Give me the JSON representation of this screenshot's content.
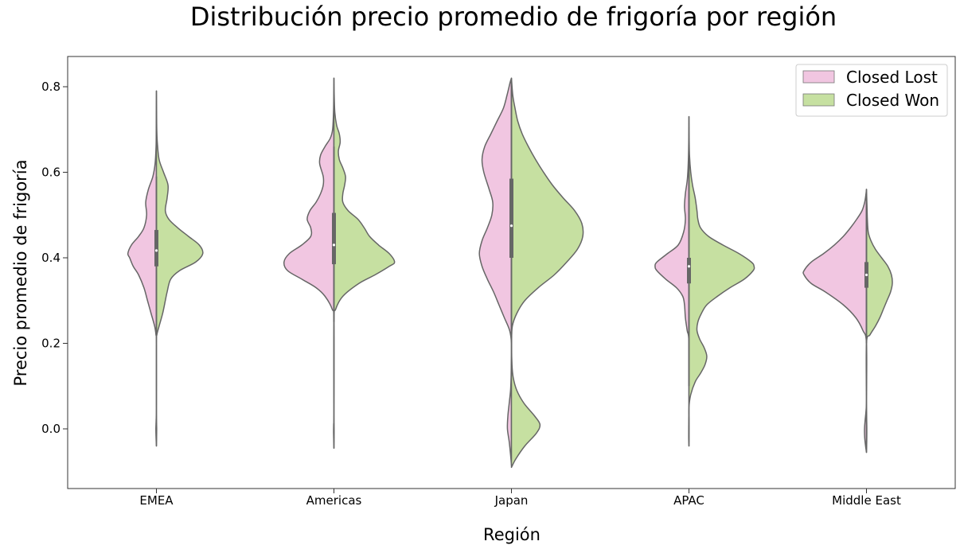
{
  "chart_data": {
    "type": "violin",
    "split": true,
    "title": "Distribución precio promedio de frigoría por región",
    "xlabel": "Región",
    "ylabel": "Precio promedio de frigoría",
    "categories": [
      "EMEA",
      "Americas",
      "Japan",
      "APAC",
      "Middle East"
    ],
    "yticks": [
      "0.0",
      "0.2",
      "0.4",
      "0.6",
      "0.8"
    ],
    "ylim": [
      -0.14,
      0.87
    ],
    "legend": {
      "placement": "top-right",
      "entries": [
        {
          "label": "Closed Lost",
          "color": "#f1c6e1"
        },
        {
          "label": "Closed Won",
          "color": "#c6e0a1"
        }
      ]
    },
    "colors": {
      "lost": "#f1c6e1",
      "won": "#c6e0a1",
      "outline": "#666666"
    },
    "box": [
      {
        "category": "EMEA",
        "q1": 0.38,
        "median": 0.417,
        "q3": 0.465,
        "whisker_low": 0.23,
        "whisker_high": 0.59
      },
      {
        "category": "Americas",
        "q1": 0.385,
        "median": 0.43,
        "q3": 0.505,
        "whisker_low": 0.25,
        "whisker_high": 0.66
      },
      {
        "category": "Japan",
        "q1": 0.4,
        "median": 0.475,
        "q3": 0.585,
        "whisker_low": 0.23,
        "whisker_high": 0.81
      },
      {
        "category": "APAC",
        "q1": 0.34,
        "median": 0.38,
        "q3": 0.4,
        "whisker_low": 0.1,
        "whisker_high": 0.65
      },
      {
        "category": "Middle East",
        "q1": 0.33,
        "median": 0.36,
        "q3": 0.39,
        "whisker_low": 0.2,
        "whisker_high": 0.53
      }
    ],
    "violins": [
      {
        "category": "EMEA",
        "lost": [
          [
            -0.04,
            0
          ],
          [
            -0.02,
            0.004
          ],
          [
            0.0,
            0.006
          ],
          [
            0.02,
            0.003
          ],
          [
            0.05,
            0
          ],
          [
            0.2,
            0
          ],
          [
            0.22,
            0.005
          ],
          [
            0.24,
            0.02
          ],
          [
            0.27,
            0.06
          ],
          [
            0.3,
            0.1
          ],
          [
            0.33,
            0.14
          ],
          [
            0.36,
            0.2
          ],
          [
            0.38,
            0.26
          ],
          [
            0.4,
            0.3
          ],
          [
            0.41,
            0.32
          ],
          [
            0.43,
            0.28
          ],
          [
            0.45,
            0.2
          ],
          [
            0.47,
            0.14
          ],
          [
            0.5,
            0.11
          ],
          [
            0.53,
            0.12
          ],
          [
            0.56,
            0.09
          ],
          [
            0.59,
            0.04
          ],
          [
            0.62,
            0.015
          ],
          [
            0.66,
            0.004
          ],
          [
            0.7,
            0.002
          ],
          [
            0.74,
            0.001
          ],
          [
            0.79,
            0
          ]
        ],
        "won": [
          [
            -0.04,
            0
          ],
          [
            -0.02,
            0.002
          ],
          [
            0.0,
            0.003
          ],
          [
            0.02,
            0.001
          ],
          [
            0.05,
            0
          ],
          [
            0.2,
            0
          ],
          [
            0.22,
            0.005
          ],
          [
            0.24,
            0.03
          ],
          [
            0.27,
            0.07
          ],
          [
            0.3,
            0.1
          ],
          [
            0.32,
            0.12
          ],
          [
            0.35,
            0.16
          ],
          [
            0.37,
            0.26
          ],
          [
            0.39,
            0.44
          ],
          [
            0.41,
            0.52
          ],
          [
            0.43,
            0.48
          ],
          [
            0.45,
            0.36
          ],
          [
            0.47,
            0.24
          ],
          [
            0.49,
            0.14
          ],
          [
            0.51,
            0.1
          ],
          [
            0.54,
            0.12
          ],
          [
            0.57,
            0.13
          ],
          [
            0.6,
            0.08
          ],
          [
            0.63,
            0.03
          ],
          [
            0.67,
            0.01
          ],
          [
            0.7,
            0.004
          ],
          [
            0.74,
            0.002
          ],
          [
            0.79,
            0
          ]
        ]
      },
      {
        "category": "Americas",
        "lost": [
          [
            -0.045,
            0
          ],
          [
            -0.01,
            0.004
          ],
          [
            0.01,
            0.003
          ],
          [
            0.04,
            0
          ],
          [
            0.25,
            0
          ],
          [
            0.28,
            0.02
          ],
          [
            0.31,
            0.1
          ],
          [
            0.33,
            0.2
          ],
          [
            0.35,
            0.36
          ],
          [
            0.37,
            0.52
          ],
          [
            0.39,
            0.56
          ],
          [
            0.41,
            0.5
          ],
          [
            0.43,
            0.36
          ],
          [
            0.45,
            0.26
          ],
          [
            0.47,
            0.26
          ],
          [
            0.49,
            0.3
          ],
          [
            0.51,
            0.27
          ],
          [
            0.53,
            0.2
          ],
          [
            0.55,
            0.15
          ],
          [
            0.57,
            0.12
          ],
          [
            0.59,
            0.12
          ],
          [
            0.62,
            0.16
          ],
          [
            0.64,
            0.15
          ],
          [
            0.66,
            0.1
          ],
          [
            0.68,
            0.04
          ],
          [
            0.7,
            0.015
          ],
          [
            0.74,
            0.005
          ],
          [
            0.78,
            0.002
          ],
          [
            0.82,
            0
          ]
        ],
        "won": [
          [
            -0.045,
            0
          ],
          [
            -0.01,
            0.002
          ],
          [
            0.01,
            0.001
          ],
          [
            0.04,
            0
          ],
          [
            0.25,
            0
          ],
          [
            0.28,
            0.02
          ],
          [
            0.31,
            0.1
          ],
          [
            0.34,
            0.28
          ],
          [
            0.36,
            0.46
          ],
          [
            0.38,
            0.62
          ],
          [
            0.39,
            0.68
          ],
          [
            0.41,
            0.62
          ],
          [
            0.43,
            0.5
          ],
          [
            0.45,
            0.4
          ],
          [
            0.47,
            0.34
          ],
          [
            0.49,
            0.27
          ],
          [
            0.51,
            0.16
          ],
          [
            0.53,
            0.1
          ],
          [
            0.55,
            0.1
          ],
          [
            0.57,
            0.12
          ],
          [
            0.59,
            0.13
          ],
          [
            0.61,
            0.1
          ],
          [
            0.63,
            0.06
          ],
          [
            0.65,
            0.05
          ],
          [
            0.67,
            0.07
          ],
          [
            0.69,
            0.06
          ],
          [
            0.71,
            0.03
          ],
          [
            0.74,
            0.01
          ],
          [
            0.78,
            0.003
          ],
          [
            0.82,
            0
          ]
        ]
      },
      {
        "category": "Japan",
        "lost": [
          [
            -0.085,
            0
          ],
          [
            -0.06,
            0.01
          ],
          [
            -0.03,
            0.025
          ],
          [
            0.0,
            0.045
          ],
          [
            0.03,
            0.04
          ],
          [
            0.06,
            0.025
          ],
          [
            0.09,
            0.01
          ],
          [
            0.12,
            0.004
          ],
          [
            0.15,
            0.002
          ],
          [
            0.2,
            0
          ],
          [
            0.23,
            0.02
          ],
          [
            0.26,
            0.08
          ],
          [
            0.29,
            0.14
          ],
          [
            0.32,
            0.2
          ],
          [
            0.35,
            0.27
          ],
          [
            0.38,
            0.33
          ],
          [
            0.41,
            0.36
          ],
          [
            0.44,
            0.33
          ],
          [
            0.47,
            0.27
          ],
          [
            0.5,
            0.22
          ],
          [
            0.53,
            0.21
          ],
          [
            0.56,
            0.25
          ],
          [
            0.6,
            0.31
          ],
          [
            0.63,
            0.33
          ],
          [
            0.66,
            0.3
          ],
          [
            0.69,
            0.23
          ],
          [
            0.72,
            0.16
          ],
          [
            0.75,
            0.09
          ],
          [
            0.78,
            0.05
          ],
          [
            0.81,
            0.015
          ],
          [
            0.82,
            0
          ]
        ],
        "won": [
          [
            -0.09,
            0
          ],
          [
            -0.07,
            0.05
          ],
          [
            -0.04,
            0.15
          ],
          [
            -0.01,
            0.28
          ],
          [
            0.01,
            0.32
          ],
          [
            0.03,
            0.26
          ],
          [
            0.06,
            0.14
          ],
          [
            0.09,
            0.06
          ],
          [
            0.12,
            0.02
          ],
          [
            0.15,
            0.006
          ],
          [
            0.2,
            0.002
          ],
          [
            0.24,
            0.01
          ],
          [
            0.27,
            0.06
          ],
          [
            0.3,
            0.15
          ],
          [
            0.33,
            0.3
          ],
          [
            0.36,
            0.48
          ],
          [
            0.39,
            0.62
          ],
          [
            0.42,
            0.74
          ],
          [
            0.45,
            0.8
          ],
          [
            0.48,
            0.79
          ],
          [
            0.51,
            0.71
          ],
          [
            0.54,
            0.58
          ],
          [
            0.57,
            0.46
          ],
          [
            0.6,
            0.36
          ],
          [
            0.63,
            0.27
          ],
          [
            0.66,
            0.19
          ],
          [
            0.69,
            0.12
          ],
          [
            0.72,
            0.07
          ],
          [
            0.75,
            0.04
          ],
          [
            0.78,
            0.015
          ],
          [
            0.82,
            0
          ]
        ]
      },
      {
        "category": "APAC",
        "lost": [
          [
            -0.04,
            0
          ],
          [
            -0.02,
            0.003
          ],
          [
            0.02,
            0.002
          ],
          [
            0.05,
            0
          ],
          [
            0.2,
            0
          ],
          [
            0.23,
            0.02
          ],
          [
            0.26,
            0.04
          ],
          [
            0.29,
            0.05
          ],
          [
            0.31,
            0.07
          ],
          [
            0.33,
            0.14
          ],
          [
            0.35,
            0.26
          ],
          [
            0.37,
            0.36
          ],
          [
            0.38,
            0.38
          ],
          [
            0.39,
            0.36
          ],
          [
            0.41,
            0.24
          ],
          [
            0.43,
            0.12
          ],
          [
            0.46,
            0.06
          ],
          [
            0.49,
            0.04
          ],
          [
            0.52,
            0.05
          ],
          [
            0.55,
            0.04
          ],
          [
            0.58,
            0.02
          ],
          [
            0.61,
            0.01
          ],
          [
            0.65,
            0.004
          ],
          [
            0.7,
            0.001
          ],
          [
            0.73,
            0
          ]
        ],
        "won": [
          [
            -0.04,
            0
          ],
          [
            -0.02,
            0.001
          ],
          [
            0.02,
            0.001
          ],
          [
            0.05,
            0
          ],
          [
            0.08,
            0.02
          ],
          [
            0.11,
            0.07
          ],
          [
            0.13,
            0.13
          ],
          [
            0.15,
            0.18
          ],
          [
            0.17,
            0.2
          ],
          [
            0.19,
            0.17
          ],
          [
            0.21,
            0.12
          ],
          [
            0.23,
            0.09
          ],
          [
            0.25,
            0.1
          ],
          [
            0.27,
            0.14
          ],
          [
            0.29,
            0.2
          ],
          [
            0.31,
            0.32
          ],
          [
            0.33,
            0.46
          ],
          [
            0.35,
            0.62
          ],
          [
            0.37,
            0.72
          ],
          [
            0.38,
            0.73
          ],
          [
            0.39,
            0.7
          ],
          [
            0.41,
            0.56
          ],
          [
            0.43,
            0.38
          ],
          [
            0.45,
            0.22
          ],
          [
            0.47,
            0.13
          ],
          [
            0.49,
            0.1
          ],
          [
            0.51,
            0.09
          ],
          [
            0.54,
            0.07
          ],
          [
            0.57,
            0.04
          ],
          [
            0.6,
            0.02
          ],
          [
            0.64,
            0.006
          ],
          [
            0.68,
            0.002
          ],
          [
            0.73,
            0
          ]
        ]
      },
      {
        "category": "Middle East",
        "lost": [
          [
            -0.055,
            0
          ],
          [
            -0.04,
            0.01
          ],
          [
            -0.02,
            0.02
          ],
          [
            0.0,
            0.022
          ],
          [
            0.02,
            0.015
          ],
          [
            0.04,
            0.006
          ],
          [
            0.07,
            0
          ],
          [
            0.2,
            0
          ],
          [
            0.23,
            0.04
          ],
          [
            0.26,
            0.12
          ],
          [
            0.29,
            0.26
          ],
          [
            0.32,
            0.46
          ],
          [
            0.34,
            0.62
          ],
          [
            0.36,
            0.7
          ],
          [
            0.37,
            0.7
          ],
          [
            0.39,
            0.62
          ],
          [
            0.41,
            0.48
          ],
          [
            0.43,
            0.36
          ],
          [
            0.45,
            0.26
          ],
          [
            0.47,
            0.18
          ],
          [
            0.49,
            0.11
          ],
          [
            0.51,
            0.05
          ],
          [
            0.53,
            0.02
          ],
          [
            0.55,
            0.005
          ],
          [
            0.56,
            0
          ]
        ],
        "won": [
          [
            -0.055,
            0
          ],
          [
            -0.03,
            0.003
          ],
          [
            0.0,
            0.004
          ],
          [
            0.03,
            0.002
          ],
          [
            0.07,
            0
          ],
          [
            0.2,
            0
          ],
          [
            0.22,
            0.04
          ],
          [
            0.24,
            0.1
          ],
          [
            0.26,
            0.15
          ],
          [
            0.28,
            0.19
          ],
          [
            0.3,
            0.23
          ],
          [
            0.32,
            0.27
          ],
          [
            0.34,
            0.29
          ],
          [
            0.36,
            0.28
          ],
          [
            0.38,
            0.24
          ],
          [
            0.4,
            0.17
          ],
          [
            0.42,
            0.1
          ],
          [
            0.44,
            0.05
          ],
          [
            0.46,
            0.02
          ],
          [
            0.49,
            0.01
          ],
          [
            0.52,
            0.006
          ],
          [
            0.56,
            0
          ]
        ]
      }
    ]
  }
}
